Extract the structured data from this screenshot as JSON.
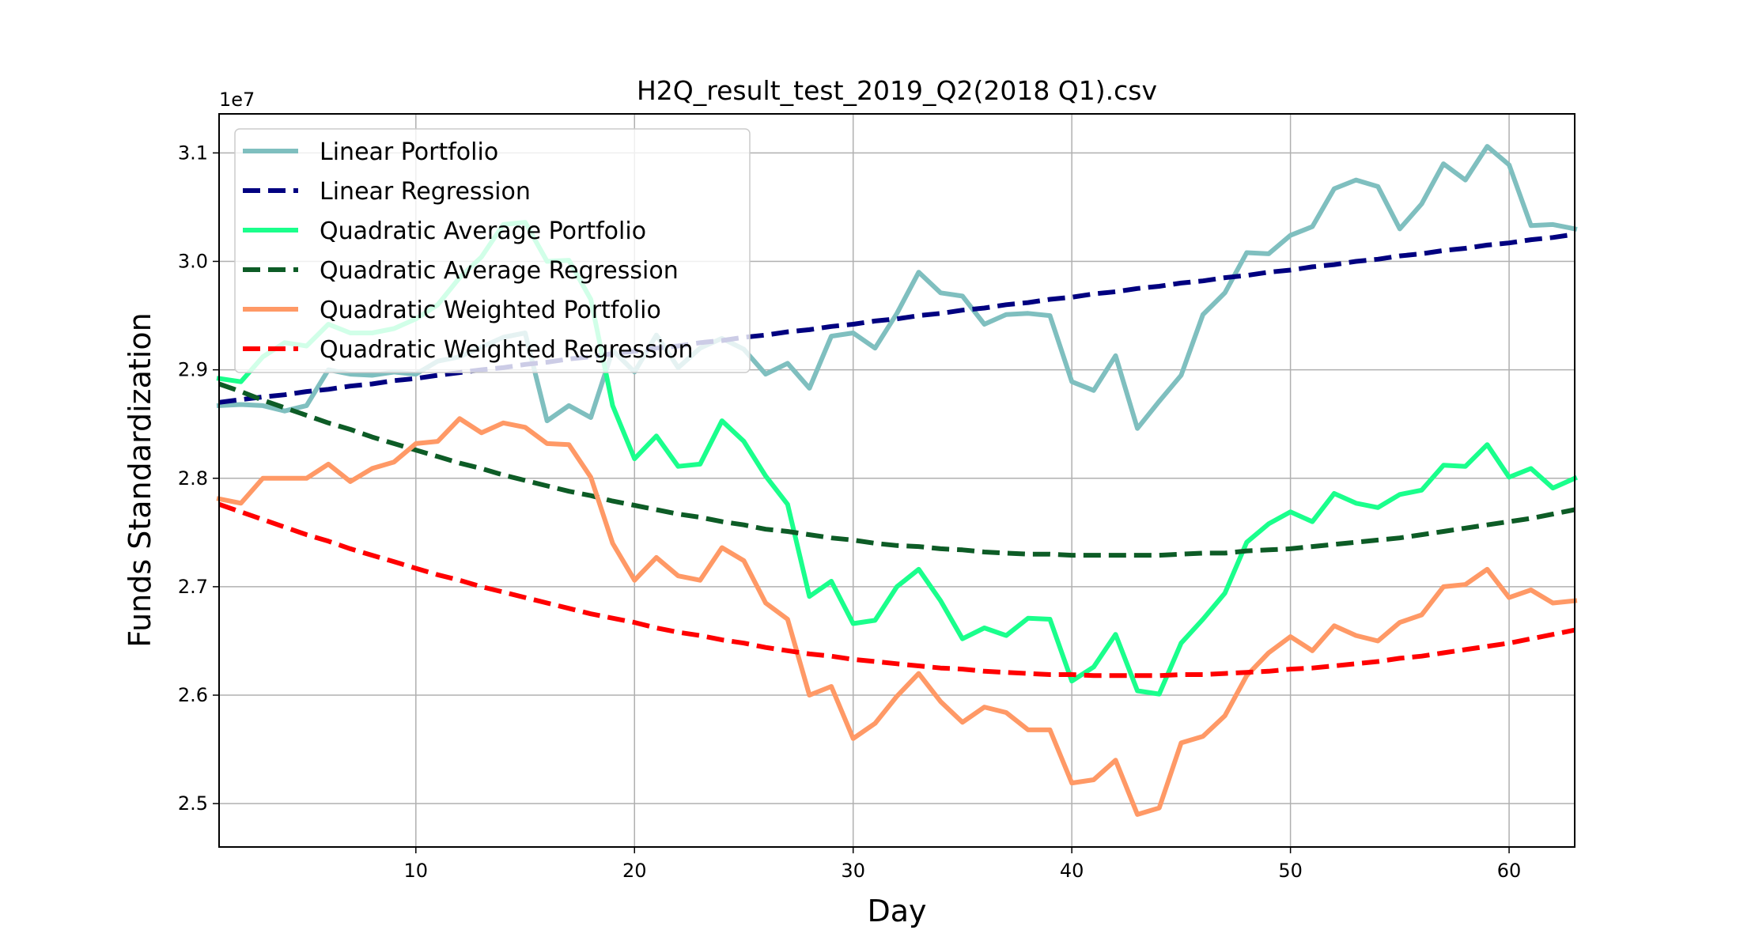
{
  "chart_data": {
    "type": "line",
    "title": "H2Q_result_test_2019_Q2(2018 Q1).csv",
    "xlabel": "Day",
    "ylabel": "Funds Standardization",
    "offset_label": "1e7",
    "xlim": [
      1,
      63
    ],
    "ylim": [
      2.46,
      3.136
    ],
    "xticks": [
      10,
      20,
      30,
      40,
      50,
      60
    ],
    "xtick_labels": [
      "10",
      "20",
      "30",
      "40",
      "50",
      "60"
    ],
    "yticks": [
      2.5,
      2.6,
      2.7,
      2.8,
      2.9,
      3.0,
      3.1
    ],
    "ytick_labels": [
      "2.5",
      "2.6",
      "2.7",
      "2.8",
      "2.9",
      "3.0",
      "3.1"
    ],
    "grid": true,
    "legend_position": "upper-left",
    "x": [
      1,
      2,
      3,
      4,
      5,
      6,
      7,
      8,
      9,
      10,
      11,
      12,
      13,
      14,
      15,
      16,
      17,
      18,
      19,
      20,
      21,
      22,
      23,
      24,
      25,
      26,
      27,
      28,
      29,
      30,
      31,
      32,
      33,
      34,
      35,
      36,
      37,
      38,
      39,
      40,
      41,
      42,
      43,
      44,
      45,
      46,
      47,
      48,
      49,
      50,
      51,
      52,
      53,
      54,
      55,
      56,
      57,
      58,
      59,
      60,
      61,
      62,
      63
    ],
    "series": [
      {
        "name": "Linear Portfolio",
        "color": "#7fbfbf",
        "style": "solid",
        "values": [
          2.867,
          2.868,
          2.867,
          2.862,
          2.867,
          2.9,
          2.896,
          2.895,
          2.898,
          2.896,
          2.908,
          2.912,
          2.921,
          2.93,
          2.934,
          2.853,
          2.867,
          2.856,
          2.918,
          2.898,
          2.932,
          2.902,
          2.92,
          2.929,
          2.919,
          2.896,
          2.906,
          2.883,
          2.931,
          2.934,
          2.92,
          2.952,
          2.99,
          2.971,
          2.968,
          2.942,
          2.951,
          2.952,
          2.95,
          2.889,
          2.881,
          2.913,
          2.846,
          2.871,
          2.895,
          2.951,
          2.971,
          3.008,
          3.007,
          3.024,
          3.032,
          3.067,
          3.075,
          3.069,
          3.03,
          3.053,
          3.09,
          3.075,
          3.106,
          3.089,
          3.033,
          3.034,
          3.03
        ]
      },
      {
        "name": "Linear Regression",
        "color": "#000080",
        "style": "dashed",
        "values": [
          2.87,
          2.8725,
          2.875,
          2.877,
          2.88,
          2.882,
          2.885,
          2.887,
          2.89,
          2.892,
          2.895,
          2.8975,
          2.9,
          2.902,
          2.905,
          2.907,
          2.91,
          2.912,
          2.915,
          2.917,
          2.92,
          2.922,
          2.925,
          2.927,
          2.93,
          2.932,
          2.935,
          2.937,
          2.94,
          2.942,
          2.945,
          2.947,
          2.95,
          2.952,
          2.955,
          2.957,
          2.96,
          2.962,
          2.965,
          2.967,
          2.97,
          2.972,
          2.975,
          2.977,
          2.98,
          2.982,
          2.985,
          2.987,
          2.99,
          2.992,
          2.995,
          2.997,
          3.0,
          3.002,
          3.005,
          3.007,
          3.01,
          3.012,
          3.015,
          3.017,
          3.02,
          3.022,
          3.025
        ]
      },
      {
        "name": "Quadratic Average Portfolio",
        "color": "#1aff8c",
        "style": "solid",
        "values": [
          2.892,
          2.889,
          2.912,
          2.925,
          2.922,
          2.942,
          2.934,
          2.934,
          2.938,
          2.947,
          2.96,
          2.985,
          3.004,
          3.034,
          3.036,
          3.0,
          3.001,
          2.965,
          2.867,
          2.818,
          2.839,
          2.811,
          2.813,
          2.853,
          2.834,
          2.802,
          2.776,
          2.691,
          2.705,
          2.666,
          2.669,
          2.7,
          2.716,
          2.687,
          2.652,
          2.662,
          2.655,
          2.671,
          2.67,
          2.613,
          2.626,
          2.656,
          2.604,
          2.601,
          2.648,
          2.67,
          2.694,
          2.741,
          2.758,
          2.769,
          2.76,
          2.786,
          2.777,
          2.773,
          2.785,
          2.789,
          2.812,
          2.811,
          2.831,
          2.801,
          2.809,
          2.791,
          2.8
        ]
      },
      {
        "name": "Quadratic Average Regression",
        "color": "#0d5c26",
        "style": "dashed",
        "values": [
          2.887,
          2.88,
          2.872,
          2.865,
          2.858,
          2.851,
          2.845,
          2.838,
          2.832,
          2.826,
          2.82,
          2.814,
          2.809,
          2.803,
          2.798,
          2.793,
          2.788,
          2.784,
          2.779,
          2.775,
          2.771,
          2.767,
          2.764,
          2.76,
          2.757,
          2.753,
          2.751,
          2.748,
          2.745,
          2.743,
          2.74,
          2.738,
          2.737,
          2.735,
          2.734,
          2.732,
          2.731,
          2.73,
          2.73,
          2.729,
          2.729,
          2.729,
          2.729,
          2.729,
          2.73,
          2.731,
          2.731,
          2.733,
          2.734,
          2.735,
          2.737,
          2.739,
          2.741,
          2.743,
          2.745,
          2.748,
          2.751,
          2.754,
          2.757,
          2.76,
          2.763,
          2.767,
          2.771
        ]
      },
      {
        "name": "Quadratic Weighted Portfolio",
        "color": "#ff9966",
        "style": "solid",
        "values": [
          2.781,
          2.777,
          2.8,
          2.8,
          2.8,
          2.813,
          2.797,
          2.809,
          2.815,
          2.832,
          2.834,
          2.855,
          2.842,
          2.851,
          2.847,
          2.832,
          2.831,
          2.801,
          2.74,
          2.706,
          2.727,
          2.71,
          2.706,
          2.736,
          2.724,
          2.685,
          2.67,
          2.6,
          2.608,
          2.56,
          2.574,
          2.599,
          2.62,
          2.594,
          2.575,
          2.589,
          2.584,
          2.568,
          2.568,
          2.519,
          2.522,
          2.54,
          2.49,
          2.496,
          2.556,
          2.562,
          2.581,
          2.618,
          2.639,
          2.654,
          2.641,
          2.664,
          2.655,
          2.65,
          2.667,
          2.674,
          2.7,
          2.702,
          2.716,
          2.69,
          2.697,
          2.685,
          2.687
        ]
      },
      {
        "name": "Quadratic Weighted Regression",
        "color": "#ff0000",
        "style": "dashed",
        "values": [
          2.776,
          2.769,
          2.762,
          2.755,
          2.748,
          2.742,
          2.735,
          2.729,
          2.723,
          2.717,
          2.711,
          2.706,
          2.7,
          2.695,
          2.69,
          2.685,
          2.68,
          2.675,
          2.671,
          2.667,
          2.662,
          2.658,
          2.655,
          2.651,
          2.648,
          2.644,
          2.641,
          2.638,
          2.636,
          2.633,
          2.631,
          2.629,
          2.627,
          2.625,
          2.624,
          2.622,
          2.621,
          2.62,
          2.619,
          2.619,
          2.618,
          2.618,
          2.618,
          2.618,
          2.619,
          2.619,
          2.62,
          2.621,
          2.622,
          2.624,
          2.625,
          2.627,
          2.629,
          2.631,
          2.634,
          2.636,
          2.639,
          2.642,
          2.645,
          2.648,
          2.652,
          2.656,
          2.66
        ]
      }
    ]
  }
}
